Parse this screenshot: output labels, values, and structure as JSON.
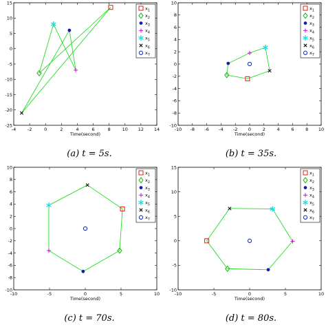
{
  "colors": {
    "link": "#22dd22",
    "x1": "#e0302a",
    "x2": "#22bb22",
    "x3": "#1a1aaa",
    "x4": "#e000e0",
    "x5": "#22dddd",
    "x6": "#111111",
    "x7": "#1030d0"
  },
  "legend": [
    {
      "key": "x1",
      "label": "x",
      "sub": "1",
      "marker": "square"
    },
    {
      "key": "x2",
      "label": "x",
      "sub": "2",
      "marker": "diamond"
    },
    {
      "key": "x3",
      "label": "x",
      "sub": "3",
      "marker": "dot"
    },
    {
      "key": "x4",
      "label": "x",
      "sub": "4",
      "marker": "plus"
    },
    {
      "key": "x5",
      "label": "x",
      "sub": "5",
      "marker": "star"
    },
    {
      "key": "x6",
      "label": "x",
      "sub": "6",
      "marker": "cross"
    },
    {
      "key": "x7",
      "label": "x",
      "sub": "7",
      "marker": "circle"
    }
  ],
  "captions": {
    "a": "(a) t = 5s.",
    "b": "(b) t = 35s.",
    "c": "(c) t = 70s.",
    "d": "(d) t = 80s."
  },
  "chart_data": [
    {
      "type": "scatter",
      "panel": "a",
      "xlabel": "Time(second)",
      "xlim": [
        -4,
        14
      ],
      "ylim": [
        -25,
        15
      ],
      "xticks": [
        -4,
        -2,
        0,
        2,
        4,
        6,
        8,
        10,
        12,
        14
      ],
      "yticks": [
        -25,
        -20,
        -15,
        -10,
        -5,
        0,
        5,
        10,
        15
      ],
      "points": {
        "x1": [
          8.2,
          13.5
        ],
        "x2": [
          -0.8,
          -8
        ],
        "x3": [
          3,
          6
        ],
        "x4": [
          3.8,
          -7
        ],
        "x5": [
          1,
          8
        ],
        "x6": [
          -3,
          -21
        ]
      },
      "edges": [
        [
          "x1",
          "x2"
        ],
        [
          "x1",
          "x6"
        ],
        [
          "x6",
          "x3"
        ],
        [
          "x3",
          "x4"
        ],
        [
          "x4",
          "x5"
        ],
        [
          "x5",
          "x2"
        ]
      ]
    },
    {
      "type": "scatter",
      "panel": "b",
      "xlabel": "Time(second)",
      "xlim": [
        -10,
        10
      ],
      "ylim": [
        -10,
        10
      ],
      "xticks": [
        -10,
        -8,
        -6,
        -4,
        -2,
        0,
        2,
        4,
        6,
        8,
        10
      ],
      "yticks": [
        -10,
        -8,
        -6,
        -4,
        -2,
        0,
        2,
        4,
        6,
        8,
        10
      ],
      "points": {
        "x1": [
          -0.3,
          -2.4
        ],
        "x2": [
          -3.2,
          -1.8
        ],
        "x3": [
          -3,
          0.1
        ],
        "x4": [
          0,
          1.8
        ],
        "x5": [
          2.2,
          2.7
        ],
        "x6": [
          2.8,
          -1.1
        ],
        "x7": [
          0,
          0
        ]
      },
      "edges": [
        [
          "x2",
          "x3"
        ],
        [
          "x3",
          "x4"
        ],
        [
          "x4",
          "x5"
        ],
        [
          "x5",
          "x6"
        ],
        [
          "x6",
          "x1"
        ],
        [
          "x1",
          "x2"
        ]
      ]
    },
    {
      "type": "scatter",
      "panel": "c",
      "xlabel": "Time(second)",
      "xlim": [
        -10,
        10
      ],
      "ylim": [
        -10,
        10
      ],
      "xticks": [
        -10,
        -5,
        0,
        5,
        10
      ],
      "yticks": [
        -10,
        -8,
        -6,
        -4,
        -2,
        0,
        2,
        4,
        6,
        8,
        10
      ],
      "points": {
        "x1": [
          5.2,
          3.2
        ],
        "x2": [
          4.8,
          -3.6
        ],
        "x3": [
          -0.3,
          -7
        ],
        "x4": [
          -5.1,
          -3.6
        ],
        "x5": [
          -5.1,
          3.8
        ],
        "x6": [
          0.3,
          7.1
        ],
        "x7": [
          0,
          0
        ]
      },
      "edges": [
        [
          "x6",
          "x1"
        ],
        [
          "x1",
          "x2"
        ],
        [
          "x2",
          "x3"
        ],
        [
          "x3",
          "x4"
        ],
        [
          "x4",
          "x5"
        ],
        [
          "x5",
          "x6"
        ]
      ]
    },
    {
      "type": "scatter",
      "panel": "d",
      "xlabel": "Time(second)",
      "xlim": [
        -10,
        10
      ],
      "ylim": [
        -10,
        15
      ],
      "xticks": [
        -10,
        -5,
        0,
        5,
        10
      ],
      "yticks": [
        -10,
        -5,
        0,
        5,
        10,
        15
      ],
      "points": {
        "x1": [
          -6,
          0
        ],
        "x2": [
          -3.1,
          -5.7
        ],
        "x3": [
          2.6,
          -5.9
        ],
        "x4": [
          6,
          -0.1
        ],
        "x5": [
          3.2,
          6.5
        ],
        "x6": [
          -2.8,
          6.6
        ],
        "x7": [
          0,
          0
        ]
      },
      "edges": [
        [
          "x1",
          "x6"
        ],
        [
          "x6",
          "x5"
        ],
        [
          "x5",
          "x4"
        ],
        [
          "x4",
          "x3"
        ],
        [
          "x3",
          "x2"
        ],
        [
          "x2",
          "x1"
        ]
      ]
    }
  ]
}
